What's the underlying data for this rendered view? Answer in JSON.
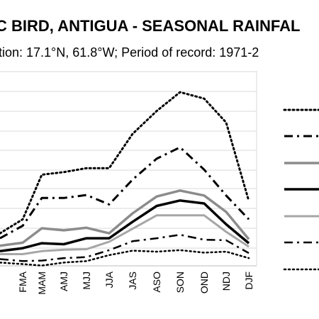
{
  "chart_data": {
    "type": "line",
    "title": "C BIRD, ANTIGUA - SEASONAL RAINFAL",
    "subtitle": "tion: 17.1°N, 61.8°W; Period of record: 1971-2",
    "categories": [
      "",
      "FMA",
      "MAM",
      "AMJ",
      "MJJ",
      "JJA",
      "JAS",
      "ASO",
      "SON",
      "OND",
      "NDJ",
      "DJF"
    ],
    "ylim": [
      0,
      450
    ],
    "grid": true,
    "legend_position": "right",
    "series": [
      {
        "style": "dotted-dark",
        "color": "#000000",
        "values": [
          47,
          75,
          165,
          170,
          178,
          178,
          247,
          293,
          331,
          318,
          270,
          112
        ]
      },
      {
        "style": "dashdot-dark",
        "color": "#000000",
        "values": [
          37,
          62,
          118,
          118,
          124,
          105,
          155,
          197,
          220,
          175,
          123,
          75
        ]
      },
      {
        "style": "solid-gray",
        "color": "#8c8c8c",
        "values": [
          22,
          28,
          57,
          53,
          58,
          47,
          87,
          121,
          133,
          123,
          90,
          35
        ]
      },
      {
        "style": "solid-dark",
        "color": "#000000",
        "values": [
          11,
          17,
          27,
          25,
          37,
          37,
          70,
          102,
          113,
          107,
          65,
          27
        ]
      },
      {
        "style": "solid-gray-thin",
        "color": "#a6a6a6",
        "values": [
          5,
          5,
          11,
          14,
          15,
          30,
          56,
          83,
          83,
          83,
          50,
          20
        ]
      },
      {
        "style": "dashdot-dark-lower",
        "color": "#000000",
        "values": [
          -5,
          -9,
          -8,
          -3,
          -1,
          13,
          31,
          37,
          44,
          34,
          33,
          7
        ]
      },
      {
        "style": "dotted-dark-lower",
        "color": "#000000",
        "values": [
          -12,
          -15,
          -18,
          -12,
          -9,
          3,
          12,
          10,
          13,
          8,
          10,
          -3
        ]
      }
    ]
  }
}
